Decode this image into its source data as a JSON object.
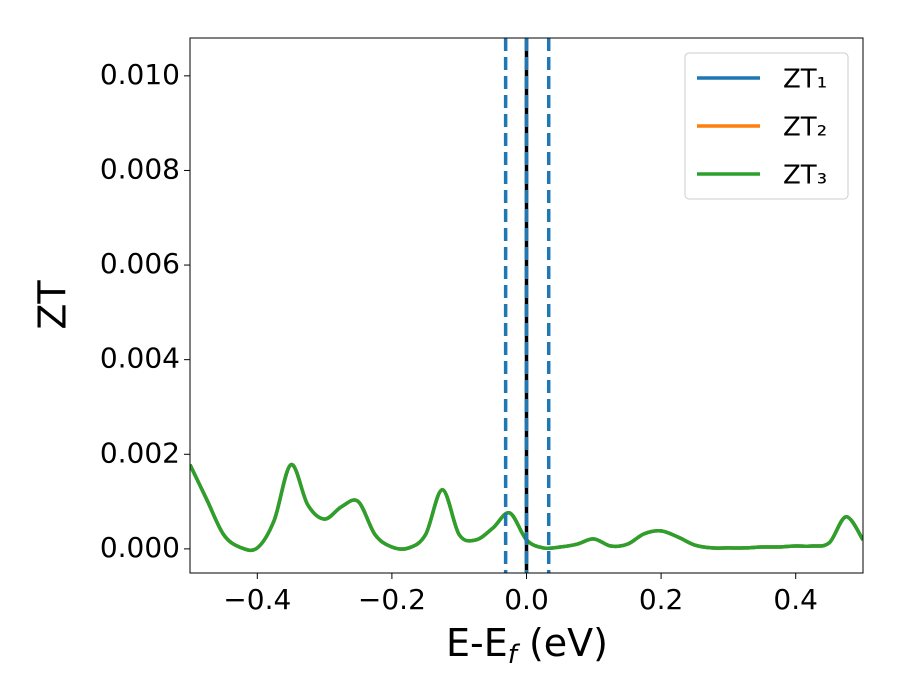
{
  "chart_data": {
    "type": "line",
    "ylabel": "ZT",
    "xlabel": [
      "E-E",
      "f",
      " (eV)"
    ],
    "x": [
      -0.5,
      -0.475,
      -0.45,
      -0.425,
      -0.4,
      -0.375,
      -0.35,
      -0.325,
      -0.3,
      -0.275,
      -0.25,
      -0.225,
      -0.2,
      -0.175,
      -0.15,
      -0.125,
      -0.1,
      -0.075,
      -0.05,
      -0.025,
      0,
      0.025,
      0.05,
      0.075,
      0.1,
      0.125,
      0.15,
      0.175,
      0.2,
      0.225,
      0.25,
      0.275,
      0.3,
      0.325,
      0.35,
      0.375,
      0.4,
      0.425,
      0.45,
      0.475,
      0.5
    ],
    "series": [
      {
        "name": "ZT₁",
        "color": "#1f77b4",
        "values": [
          0.00178,
          0.00104,
          0.0003,
          3e-05,
          2e-05,
          0.0006,
          0.00178,
          0.00093,
          0.00063,
          0.00089,
          0.001,
          0.0003,
          4e-05,
          2e-05,
          0.0003,
          0.00125,
          0.0003,
          0.00019,
          0.00044,
          0.00076,
          0.00019,
          2e-05,
          4e-05,
          0.0001,
          0.00021,
          6e-05,
          0.0001,
          0.00032,
          0.00038,
          0.00025,
          8e-05,
          2e-05,
          2e-05,
          2e-05,
          4e-05,
          4e-05,
          6e-05,
          6e-05,
          0.00013,
          0.00068,
          0.00019
        ]
      },
      {
        "name": "ZT₂",
        "color": "#ff7f0e",
        "values": [
          0.00178,
          0.00104,
          0.0003,
          3e-05,
          2e-05,
          0.0006,
          0.00178,
          0.00093,
          0.00063,
          0.00089,
          0.001,
          0.0003,
          4e-05,
          2e-05,
          0.0003,
          0.00125,
          0.0003,
          0.00019,
          0.00044,
          0.00076,
          0.00019,
          2e-05,
          4e-05,
          0.0001,
          0.00021,
          6e-05,
          0.0001,
          0.00032,
          0.00038,
          0.00025,
          8e-05,
          2e-05,
          2e-05,
          2e-05,
          4e-05,
          4e-05,
          6e-05,
          6e-05,
          0.00013,
          0.00068,
          0.00019
        ]
      },
      {
        "name": "ZT₃",
        "color": "#2ca02c",
        "values": [
          0.00178,
          0.00104,
          0.0003,
          3e-05,
          2e-05,
          0.0006,
          0.00178,
          0.00093,
          0.00063,
          0.00089,
          0.001,
          0.0003,
          4e-05,
          2e-05,
          0.0003,
          0.00125,
          0.0003,
          0.00019,
          0.00044,
          0.00076,
          0.00019,
          2e-05,
          4e-05,
          0.0001,
          0.00021,
          6e-05,
          0.0001,
          0.00032,
          0.00038,
          0.00025,
          8e-05,
          2e-05,
          2e-05,
          2e-05,
          4e-05,
          4e-05,
          6e-05,
          6e-05,
          0.00013,
          0.00068,
          0.00019
        ]
      }
    ],
    "vlines": [
      {
        "x": -0.031,
        "color": "#1f77b4",
        "style": "dashed"
      },
      {
        "x": 0,
        "color": "#000000",
        "style": "solid"
      },
      {
        "x": 0,
        "color": "#1f77b4",
        "style": "dashed"
      },
      {
        "x": 0.033,
        "color": "#1f77b4",
        "style": "dashed"
      }
    ],
    "xlim": [
      -0.5,
      0.5
    ],
    "ylim": [
      -0.00051,
      0.0108
    ],
    "xticks": [
      {
        "value": -0.4,
        "label": "−0.4"
      },
      {
        "value": -0.2,
        "label": "−0.2"
      },
      {
        "value": 0,
        "label": "0.0"
      },
      0.2,
      0.4
    ],
    "yticks": [
      {
        "value": 0,
        "label": "0.000"
      },
      {
        "value": 0.002,
        "label": "0.002"
      },
      {
        "value": 0.004,
        "label": "0.004"
      },
      {
        "value": 0.006,
        "label": "0.006"
      },
      {
        "value": 0.008,
        "label": "0.008"
      },
      {
        "value": 0.01,
        "label": "0.010"
      }
    ],
    "legend": "upper right",
    "grid": false
  }
}
